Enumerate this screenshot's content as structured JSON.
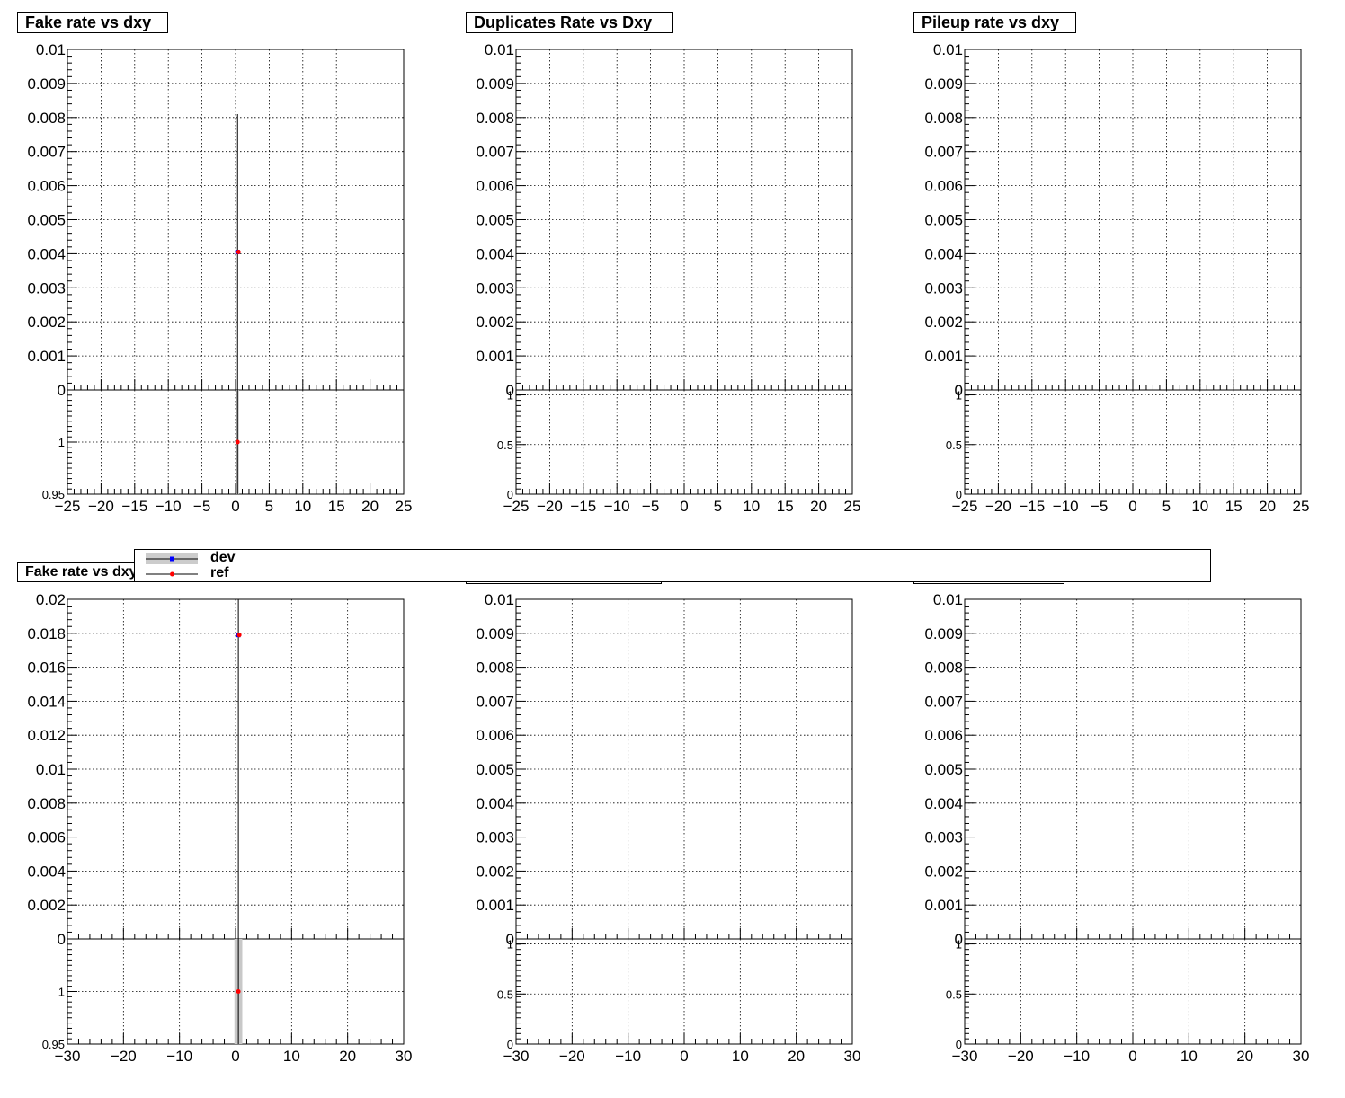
{
  "legend": {
    "entries": [
      {
        "label": "dev",
        "color": "#0000ff",
        "band": "#cccccc"
      },
      {
        "label": "ref",
        "color": "#ff0000"
      }
    ]
  },
  "colors": {
    "dev": "#0000ff",
    "ref": "#ff0000",
    "band": "#c8c8c8"
  },
  "chart_data": [
    {
      "type": "scatter",
      "title": "Fake rate vs dxy",
      "grid": true,
      "xlim": [
        -25,
        25
      ],
      "xticks": [
        -25,
        -20,
        -15,
        -10,
        -5,
        0,
        5,
        10,
        15,
        20,
        25
      ],
      "ylim": [
        0,
        0.01
      ],
      "yticks": [
        0.001,
        0.002,
        0.003,
        0.004,
        0.005,
        0.006,
        0.007,
        0.008,
        0.009,
        0.01
      ],
      "ytick_labels": [
        "0.001",
        "0.002",
        "0.003",
        "0.004",
        "0.005",
        "0.006",
        "0.007",
        "0.008",
        "0.009",
        "0.01"
      ],
      "ratio_ylim": [
        0.95,
        1.05
      ],
      "ratio_yticks": [
        0.95,
        1
      ],
      "ratio_ytick_labels": [
        "0.95",
        "1"
      ],
      "series": [
        {
          "name": "dev",
          "x": [
            0.3
          ],
          "y": [
            0.00405
          ],
          "yerr_top": 0.0081
        },
        {
          "name": "ref",
          "x": [
            0.3
          ],
          "y": [
            0.00405
          ]
        }
      ],
      "ratio": [
        {
          "x": 0.3,
          "y": 1.0
        }
      ]
    },
    {
      "type": "scatter",
      "title": "Duplicates Rate vs Dxy",
      "grid": true,
      "xlim": [
        -25,
        25
      ],
      "xticks": [
        -25,
        -20,
        -15,
        -10,
        -5,
        0,
        5,
        10,
        15,
        20,
        25
      ],
      "ylim": [
        0,
        0.01
      ],
      "yticks": [
        0.001,
        0.002,
        0.003,
        0.004,
        0.005,
        0.006,
        0.007,
        0.008,
        0.009,
        0.01
      ],
      "ytick_labels": [
        "0.001",
        "0.002",
        "0.003",
        "0.004",
        "0.005",
        "0.006",
        "0.007",
        "0.008",
        "0.009",
        "0.01"
      ],
      "ratio_ylim": [
        0,
        1.05
      ],
      "ratio_yticks": [
        0,
        0.5,
        1
      ],
      "ratio_ytick_labels": [
        "0",
        "0.5",
        "1"
      ],
      "series": [],
      "ratio": []
    },
    {
      "type": "scatter",
      "title": "Pileup rate vs dxy",
      "grid": true,
      "xlim": [
        -25,
        25
      ],
      "xticks": [
        -25,
        -20,
        -15,
        -10,
        -5,
        0,
        5,
        10,
        15,
        20,
        25
      ],
      "ylim": [
        0,
        0.01
      ],
      "yticks": [
        0.001,
        0.002,
        0.003,
        0.004,
        0.005,
        0.006,
        0.007,
        0.008,
        0.009,
        0.01
      ],
      "ytick_labels": [
        "0.001",
        "0.002",
        "0.003",
        "0.004",
        "0.005",
        "0.006",
        "0.007",
        "0.008",
        "0.009",
        "0.01"
      ],
      "ratio_ylim": [
        0,
        1.05
      ],
      "ratio_yticks": [
        0,
        0.5,
        1
      ],
      "ratio_ytick_labels": [
        "0",
        "0.5",
        "1"
      ],
      "series": [],
      "ratio": []
    },
    {
      "type": "scatter",
      "title": "Fake rate vs dxy",
      "grid": true,
      "xlim": [
        -30,
        30
      ],
      "xticks": [
        -30,
        -20,
        -10,
        0,
        10,
        20,
        30
      ],
      "ylim": [
        0,
        0.02
      ],
      "yticks": [
        0.002,
        0.004,
        0.006,
        0.008,
        0.01,
        0.012,
        0.014,
        0.016,
        0.018,
        0.02
      ],
      "ytick_labels": [
        "0.002",
        "0.004",
        "0.006",
        "0.008",
        "0.01",
        "0.012",
        "0.014",
        "0.016",
        "0.018",
        "0.02"
      ],
      "ratio_ylim": [
        0.95,
        1.05
      ],
      "ratio_yticks": [
        0.95,
        1
      ],
      "ratio_ytick_labels": [
        "0.95",
        "1"
      ],
      "series": [
        {
          "name": "dev",
          "x": [
            0.5
          ],
          "y": [
            0.0179
          ],
          "yerr_top": 0.02
        },
        {
          "name": "ref",
          "x": [
            0.5
          ],
          "y": [
            0.0179
          ]
        }
      ],
      "ratio": [
        {
          "x": 0.5,
          "y": 1.0,
          "band": [
            -0.2,
            1.2
          ]
        }
      ]
    },
    {
      "type": "scatter",
      "title": "",
      "grid": true,
      "xlim": [
        -30,
        30
      ],
      "xticks": [
        -30,
        -20,
        -10,
        0,
        10,
        20,
        30
      ],
      "ylim": [
        0,
        0.01
      ],
      "yticks": [
        0.001,
        0.002,
        0.003,
        0.004,
        0.005,
        0.006,
        0.007,
        0.008,
        0.009,
        0.01
      ],
      "ytick_labels": [
        "0.001",
        "0.002",
        "0.003",
        "0.004",
        "0.005",
        "0.006",
        "0.007",
        "0.008",
        "0.009",
        "0.01"
      ],
      "ratio_ylim": [
        0,
        1.05
      ],
      "ratio_yticks": [
        0,
        0.5,
        1
      ],
      "ratio_ytick_labels": [
        "0",
        "0.5",
        "1"
      ],
      "series": [],
      "ratio": []
    },
    {
      "type": "scatter",
      "title": "",
      "grid": true,
      "xlim": [
        -30,
        30
      ],
      "xticks": [
        -30,
        -20,
        -10,
        0,
        10,
        20,
        30
      ],
      "ylim": [
        0,
        0.01
      ],
      "yticks": [
        0.001,
        0.002,
        0.003,
        0.004,
        0.005,
        0.006,
        0.007,
        0.008,
        0.009,
        0.01
      ],
      "ytick_labels": [
        "0.001",
        "0.002",
        "0.003",
        "0.004",
        "0.005",
        "0.006",
        "0.007",
        "0.008",
        "0.009",
        "0.01"
      ],
      "ratio_ylim": [
        0,
        1.05
      ],
      "ratio_yticks": [
        0,
        0.5,
        1
      ],
      "ratio_ytick_labels": [
        "0",
        "0.5",
        "1"
      ],
      "series": [],
      "ratio": []
    }
  ]
}
